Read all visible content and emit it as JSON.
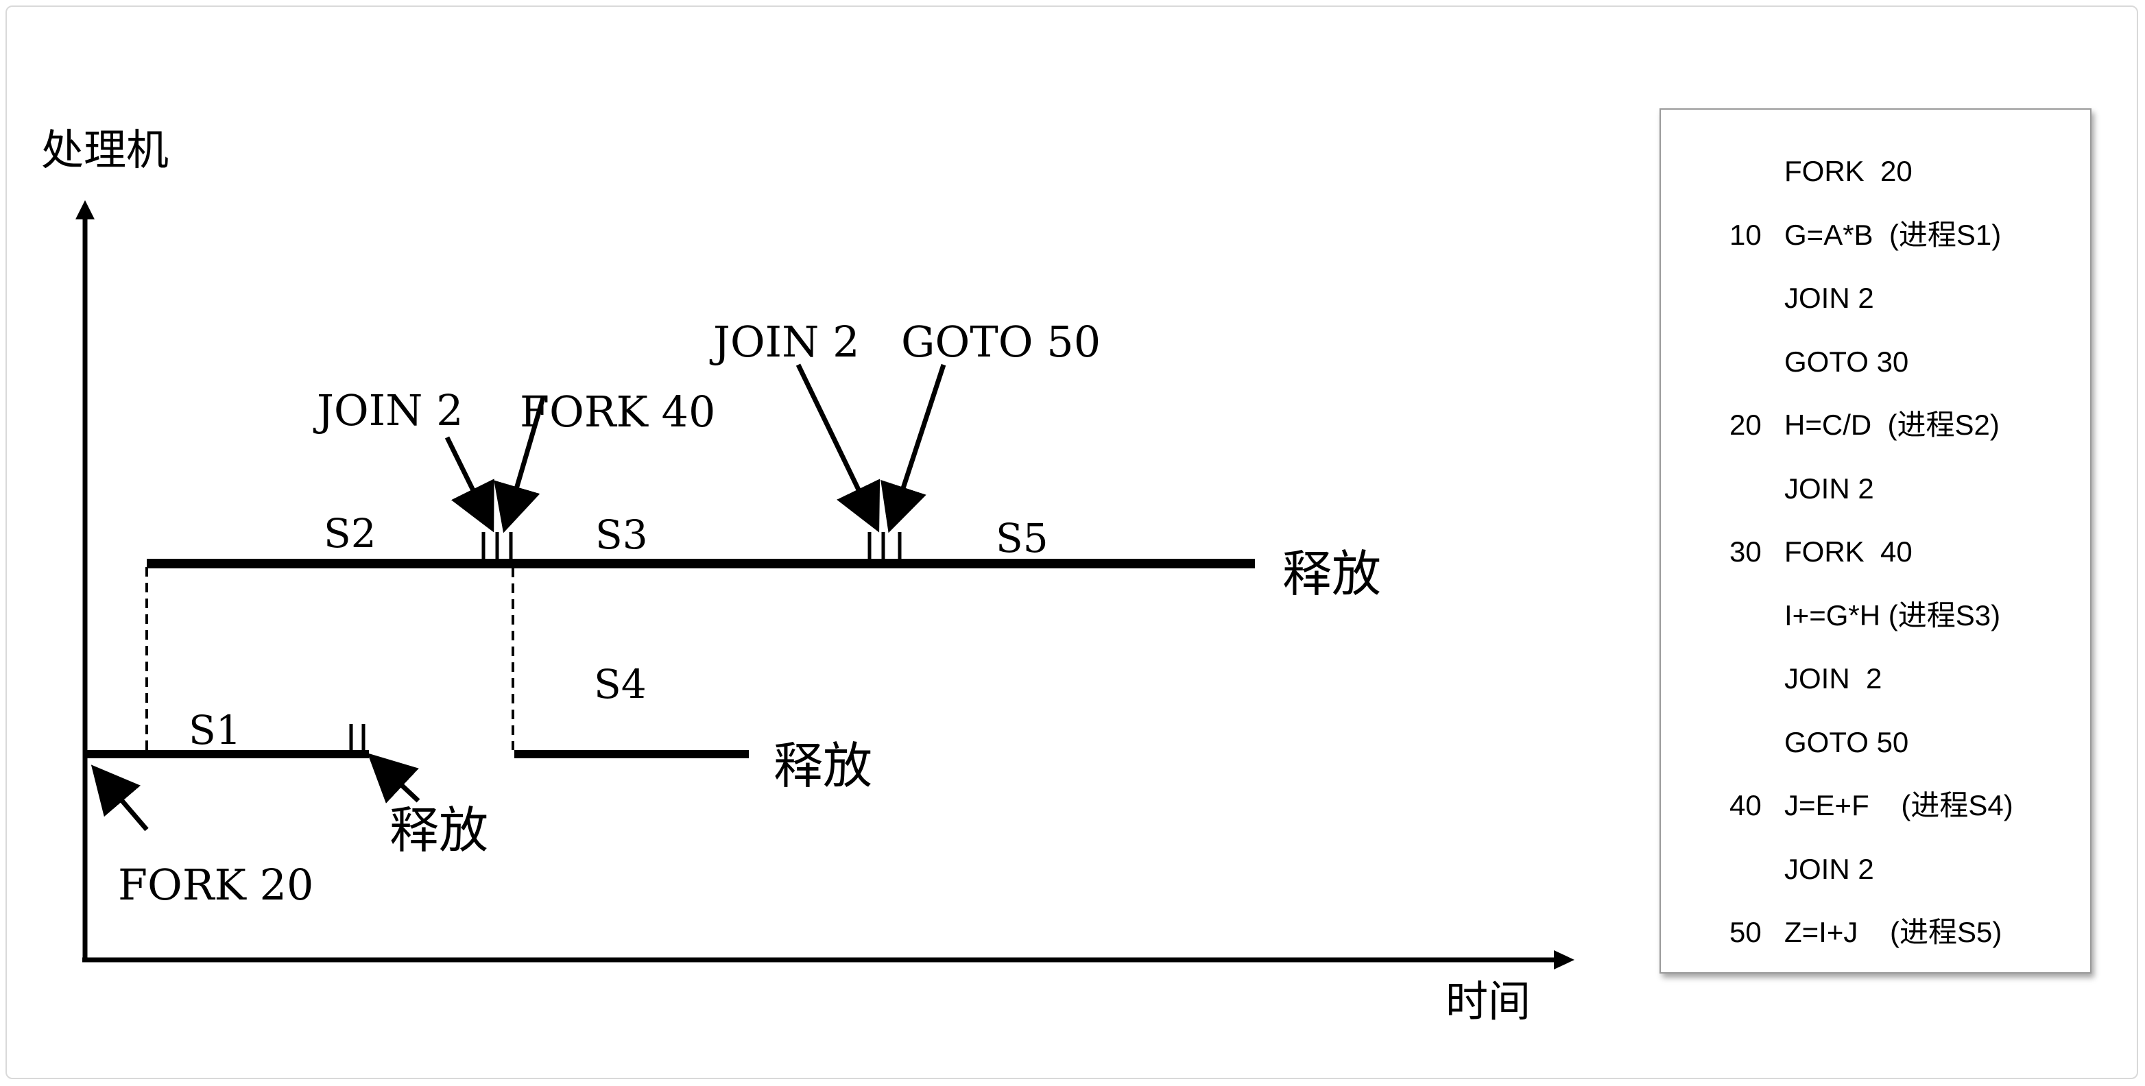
{
  "diagram": {
    "y_axis_label": "处理机",
    "x_axis_label": "时间",
    "segments": {
      "s1": "S1",
      "s2": "S2",
      "s3": "S3",
      "s4": "S4",
      "s5": "S5"
    },
    "annotations": {
      "fork20": "FORK 20",
      "join2_first": "JOIN 2",
      "fork40": "FORK 40",
      "join2_second": "JOIN 2",
      "goto50": "GOTO 50"
    },
    "release_labels": {
      "s1_release": "释放",
      "s4_release": "释放",
      "s5_release": "释放"
    }
  },
  "code_panel": {
    "lines": [
      {
        "num": "",
        "stmt": "FORK  20"
      },
      {
        "num": "10",
        "stmt": "G=A*B  (进程S1)"
      },
      {
        "num": "",
        "stmt": "JOIN 2"
      },
      {
        "num": "",
        "stmt": "GOTO 30"
      },
      {
        "num": "20",
        "stmt": "H=C/D  (进程S2)"
      },
      {
        "num": "",
        "stmt": "JOIN 2"
      },
      {
        "num": "30",
        "stmt": "FORK  40"
      },
      {
        "num": "",
        "stmt": "I+=G*H (进程S3)"
      },
      {
        "num": "",
        "stmt": "JOIN  2"
      },
      {
        "num": "",
        "stmt": "GOTO 50"
      },
      {
        "num": "40",
        "stmt": "J=E+F    (进程S4)"
      },
      {
        "num": "",
        "stmt": "JOIN 2"
      },
      {
        "num": "50",
        "stmt": "Z=I+J    (进程S5)"
      }
    ]
  }
}
